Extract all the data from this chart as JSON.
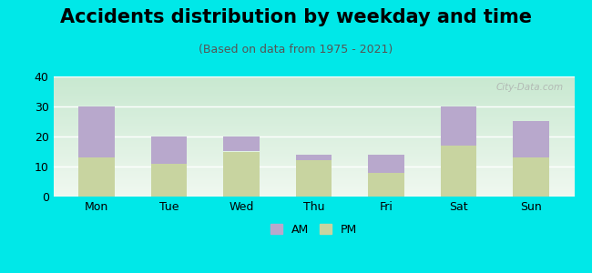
{
  "title": "Accidents distribution by weekday and time",
  "subtitle": "(Based on data from 1975 - 2021)",
  "categories": [
    "Mon",
    "Tue",
    "Wed",
    "Thu",
    "Fri",
    "Sat",
    "Sun"
  ],
  "pm_values": [
    13,
    11,
    15,
    12,
    8,
    17,
    13
  ],
  "am_values": [
    17,
    9,
    5,
    2,
    6,
    13,
    12
  ],
  "am_color": "#b8a8cc",
  "pm_color": "#c8d4a0",
  "background_color": "#00e8e8",
  "plot_bg_top": "#c8e8d0",
  "plot_bg_bottom": "#f0f8f0",
  "ylim": [
    0,
    40
  ],
  "yticks": [
    0,
    10,
    20,
    30,
    40
  ],
  "title_fontsize": 15,
  "subtitle_fontsize": 9,
  "tick_fontsize": 9,
  "legend_fontsize": 9,
  "watermark_text": "City-Data.com",
  "bar_width": 0.5
}
